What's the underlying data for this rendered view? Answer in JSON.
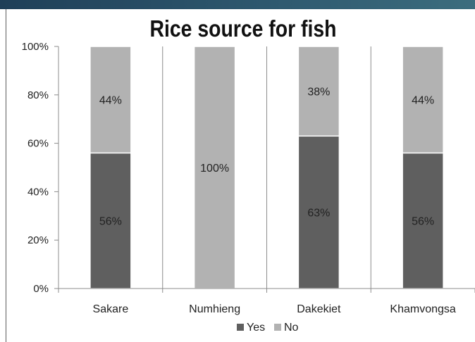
{
  "chart_data": {
    "type": "bar",
    "stacked": true,
    "percent": true,
    "title": "Rice source for fish",
    "categories": [
      "Sakare",
      "Numhieng",
      "Dakekiet",
      "Khamvongsa"
    ],
    "series": [
      {
        "name": "Yes",
        "values": [
          56,
          0,
          63,
          56
        ],
        "labels": [
          "56%",
          "",
          "63%",
          "56%"
        ],
        "color": "#5f5f5f"
      },
      {
        "name": "No",
        "values": [
          44,
          100,
          38,
          44
        ],
        "labels": [
          "44%",
          "100%",
          "38%",
          "44%"
        ],
        "color": "#b2b2b2"
      }
    ],
    "yticks": [
      "0%",
      "20%",
      "40%",
      "60%",
      "80%",
      "100%"
    ],
    "ylim": [
      0,
      100
    ],
    "grid": "vertical",
    "legend": "bottom"
  },
  "colors": {
    "header_bar": "#2a4f67",
    "grid": "#8c8c8c"
  }
}
